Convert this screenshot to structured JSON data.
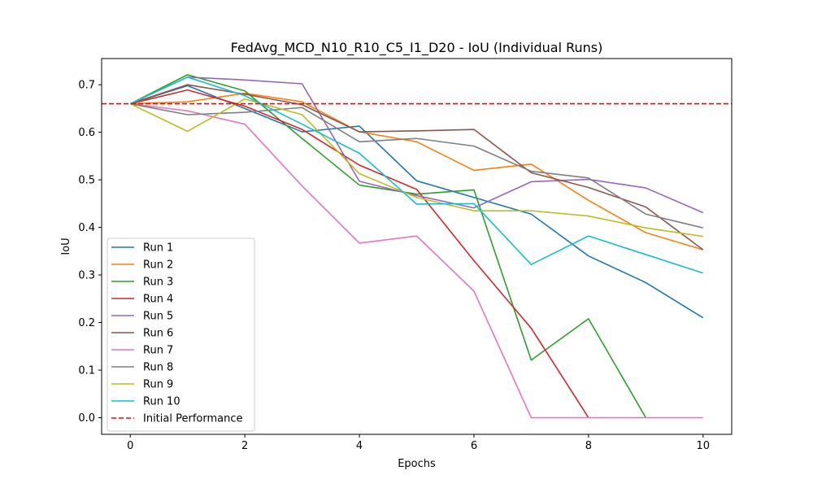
{
  "chart_data": {
    "type": "line",
    "title": "FedAvg_MCD_N10_R10_C5_I1_D20 - IoU (Individual Runs)",
    "xlabel": "Epochs",
    "ylabel": "IoU",
    "xlim": [
      -0.5,
      10.5
    ],
    "ylim": [
      -0.035,
      0.755
    ],
    "xticks": [
      0,
      2,
      4,
      6,
      8,
      10
    ],
    "yticks": [
      0.0,
      0.1,
      0.2,
      0.3,
      0.4,
      0.5,
      0.6,
      0.7
    ],
    "ytick_labels": [
      "0.0",
      "0.1",
      "0.2",
      "0.3",
      "0.4",
      "0.5",
      "0.6",
      "0.7"
    ],
    "grid": false,
    "legend_position": "lower-left",
    "x": [
      0,
      1,
      2,
      3,
      4,
      5,
      6,
      7,
      8,
      9,
      10
    ],
    "series": [
      {
        "name": "Run 1",
        "color": "#1f77b4",
        "values": [
          0.66,
          0.698,
          0.65,
          0.601,
          0.613,
          0.498,
          0.463,
          0.428,
          0.34,
          0.284,
          0.21
        ]
      },
      {
        "name": "Run 2",
        "color": "#ff7f0e",
        "values": [
          0.66,
          0.664,
          0.682,
          0.664,
          0.601,
          0.58,
          0.52,
          0.533,
          0.457,
          0.389,
          0.353
        ]
      },
      {
        "name": "Run 3",
        "color": "#2ca02c",
        "values": [
          0.66,
          0.721,
          0.687,
          0.587,
          0.489,
          0.47,
          0.479,
          0.121,
          0.208,
          0.0,
          null
        ]
      },
      {
        "name": "Run 4",
        "color": "#d62728",
        "values": [
          0.66,
          0.689,
          0.655,
          0.606,
          0.531,
          0.48,
          0.33,
          0.188,
          0.0,
          null,
          null
        ]
      },
      {
        "name": "Run 5",
        "color": "#9467bd",
        "values": [
          0.66,
          0.716,
          0.71,
          0.702,
          0.497,
          0.467,
          0.441,
          0.496,
          0.501,
          0.483,
          0.431
        ]
      },
      {
        "name": "Run 6",
        "color": "#8c564b",
        "values": [
          0.66,
          0.7,
          0.68,
          0.658,
          0.601,
          0.603,
          0.606,
          0.515,
          0.484,
          0.443,
          0.353
        ]
      },
      {
        "name": "Run 7",
        "color": "#e377c2",
        "values": [
          0.66,
          0.645,
          0.617,
          0.487,
          0.367,
          0.382,
          0.266,
          0.0,
          0.0,
          0.0,
          0.0
        ]
      },
      {
        "name": "Run 8",
        "color": "#7f7f7f",
        "values": [
          0.66,
          0.637,
          0.642,
          0.652,
          0.58,
          0.587,
          0.571,
          0.518,
          0.504,
          0.428,
          0.399
        ]
      },
      {
        "name": "Run 9",
        "color": "#bcbd22",
        "values": [
          0.66,
          0.602,
          0.67,
          0.637,
          0.513,
          0.463,
          0.435,
          0.435,
          0.424,
          0.399,
          0.381
        ]
      },
      {
        "name": "Run 10",
        "color": "#17becf",
        "values": [
          0.66,
          0.716,
          0.677,
          0.617,
          0.556,
          0.449,
          0.45,
          0.322,
          0.382,
          0.343,
          0.304
        ]
      }
    ],
    "reference_line": {
      "name": "Initial Performance",
      "color": "#ff0000",
      "value": 0.66,
      "style": "dashed"
    }
  }
}
